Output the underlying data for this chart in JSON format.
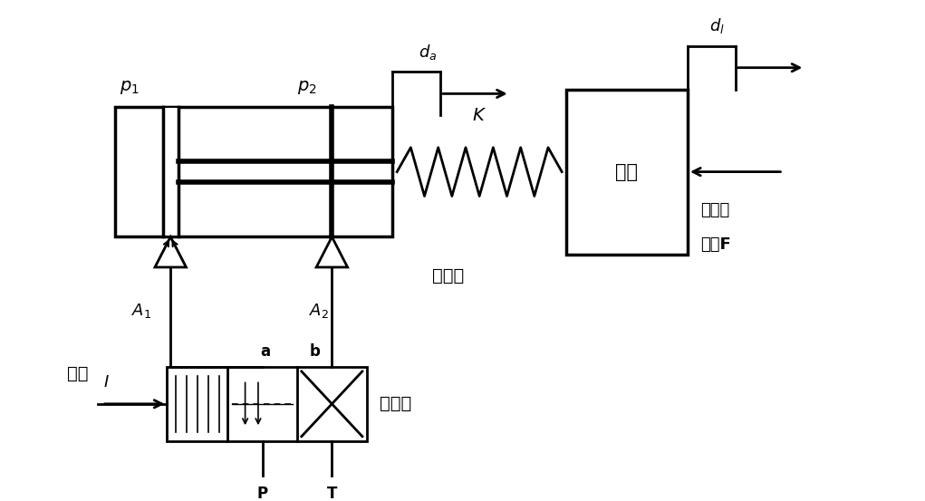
{
  "title": "",
  "background_color": "#ffffff",
  "line_color": "#000000",
  "text_color": "#000000",
  "fig_width": 10.21,
  "fig_height": 5.53,
  "dpi": 100,
  "labels": {
    "p1": "p_1",
    "p2": "p_2",
    "A1": "A_1",
    "A2": "A_2",
    "K": "K",
    "da": "d_a",
    "dl": "d_l",
    "I": "I",
    "a": "a",
    "b": "b",
    "P": "P",
    "T": "T",
    "load": "负载",
    "hydraulic": "液压缸",
    "servo": "伺服阀",
    "current": "电流",
    "ext_force_1": "外部负",
    "ext_force_2": "载力F"
  }
}
